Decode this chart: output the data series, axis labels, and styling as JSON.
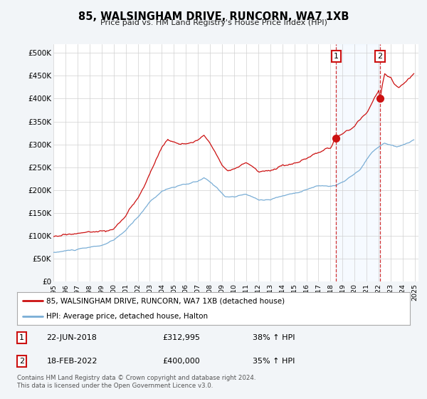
{
  "title": "85, WALSINGHAM DRIVE, RUNCORN, WA7 1XB",
  "subtitle": "Price paid vs. HM Land Registry's House Price Index (HPI)",
  "ylabel_ticks": [
    "£0",
    "£50K",
    "£100K",
    "£150K",
    "£200K",
    "£250K",
    "£300K",
    "£350K",
    "£400K",
    "£450K",
    "£500K"
  ],
  "ytick_vals": [
    0,
    50000,
    100000,
    150000,
    200000,
    250000,
    300000,
    350000,
    400000,
    450000,
    500000
  ],
  "ylim": [
    0,
    520000
  ],
  "hpi_color": "#7aaed6",
  "price_color": "#cc1111",
  "sale1_date": "22-JUN-2018",
  "sale1_price": "£312,995",
  "sale1_pct": "38% ↑ HPI",
  "sale2_date": "18-FEB-2022",
  "sale2_price": "£400,000",
  "sale2_pct": "35% ↑ HPI",
  "sale1_year": 2018.47,
  "sale2_year": 2022.12,
  "sale1_price_val": 312995,
  "sale2_price_val": 400000,
  "legend_label1": "85, WALSINGHAM DRIVE, RUNCORN, WA7 1XB (detached house)",
  "legend_label2": "HPI: Average price, detached house, Halton",
  "footnote": "Contains HM Land Registry data © Crown copyright and database right 2024.\nThis data is licensed under the Open Government Licence v3.0.",
  "background_color": "#f2f5f8",
  "plot_bg_color": "#ffffff",
  "grid_color": "#d0d0d0",
  "shade_color": "#ddeeff"
}
